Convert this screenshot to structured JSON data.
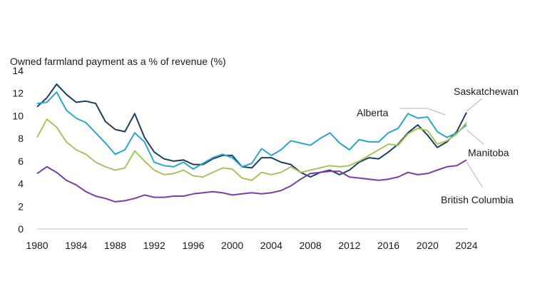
{
  "chart_data": {
    "type": "line",
    "title": "",
    "ylabel": "Owned farmland payment as a % of revenue (%)",
    "xlabel": "",
    "xlim": [
      1980,
      2024
    ],
    "ylim": [
      0,
      14
    ],
    "x_ticks": [
      "1980",
      "1984",
      "1988",
      "1992",
      "1996",
      "2000",
      "2004",
      "2008",
      "2012",
      "2016",
      "2020",
      "2024"
    ],
    "y_ticks": [
      "0",
      "2",
      "4",
      "6",
      "8",
      "10",
      "12",
      "14"
    ],
    "grid": false,
    "legend": "direct labels at line ends",
    "x": [
      1980,
      1981,
      1982,
      1983,
      1984,
      1985,
      1986,
      1987,
      1988,
      1989,
      1990,
      1991,
      1992,
      1993,
      1994,
      1995,
      1996,
      1997,
      1998,
      1999,
      2000,
      2001,
      2002,
      2003,
      2004,
      2005,
      2006,
      2007,
      2008,
      2009,
      2010,
      2011,
      2012,
      2013,
      2014,
      2015,
      2016,
      2017,
      2018,
      2019,
      2020,
      2021,
      2022,
      2023,
      2024
    ],
    "series": [
      {
        "name": "Saskatchewan",
        "color": "#1f3d5c",
        "values": [
          10.8,
          11.6,
          12.8,
          11.9,
          11.2,
          11.3,
          11.1,
          9.5,
          8.8,
          8.6,
          10.2,
          8.1,
          6.8,
          6.2,
          6.0,
          6.1,
          5.7,
          5.7,
          6.2,
          6.5,
          6.5,
          5.5,
          5.4,
          6.3,
          6.3,
          5.9,
          5.7,
          5.0,
          4.6,
          5.0,
          5.2,
          4.8,
          5.2,
          5.9,
          6.3,
          6.2,
          6.8,
          7.5,
          8.5,
          9.2,
          8.3,
          7.2,
          7.7,
          8.6,
          10.3
        ]
      },
      {
        "name": "Alberta",
        "color": "#2aa6c9",
        "values": [
          11.1,
          11.2,
          12.1,
          10.5,
          9.8,
          9.4,
          8.5,
          7.6,
          6.6,
          7.0,
          8.5,
          7.7,
          5.9,
          5.6,
          5.5,
          5.9,
          5.3,
          5.8,
          6.3,
          6.6,
          6.3,
          5.5,
          5.8,
          7.1,
          6.5,
          7.0,
          7.8,
          7.6,
          7.4,
          8.0,
          8.5,
          7.6,
          7.0,
          7.9,
          7.7,
          7.7,
          8.5,
          8.9,
          10.2,
          9.8,
          9.9,
          8.6,
          8.1,
          8.5,
          9.2
        ]
      },
      {
        "name": "Manitoba",
        "color": "#a8c45c",
        "values": [
          8.1,
          9.7,
          9.0,
          7.7,
          7.0,
          6.6,
          5.9,
          5.5,
          5.2,
          5.4,
          6.9,
          6.0,
          5.2,
          4.8,
          4.9,
          5.2,
          4.7,
          4.6,
          5.0,
          5.4,
          5.3,
          4.5,
          4.3,
          5.0,
          4.8,
          5.0,
          5.5,
          5.0,
          5.2,
          5.4,
          5.6,
          5.5,
          5.6,
          6.0,
          6.5,
          7.0,
          7.5,
          7.4,
          8.4,
          8.9,
          8.7,
          7.5,
          7.8,
          8.4,
          9.4
        ]
      },
      {
        "name": "British Columbia",
        "color": "#7a3fa6",
        "values": [
          4.9,
          5.5,
          5.0,
          4.3,
          3.9,
          3.3,
          2.9,
          2.7,
          2.4,
          2.5,
          2.7,
          3.0,
          2.8,
          2.8,
          2.9,
          2.9,
          3.1,
          3.2,
          3.3,
          3.2,
          3.0,
          3.1,
          3.2,
          3.1,
          3.2,
          3.4,
          3.8,
          4.4,
          4.9,
          5.0,
          5.1,
          5.1,
          4.6,
          4.5,
          4.4,
          4.3,
          4.4,
          4.6,
          5.0,
          4.8,
          4.9,
          5.2,
          5.5,
          5.6,
          6.1
        ]
      }
    ]
  }
}
